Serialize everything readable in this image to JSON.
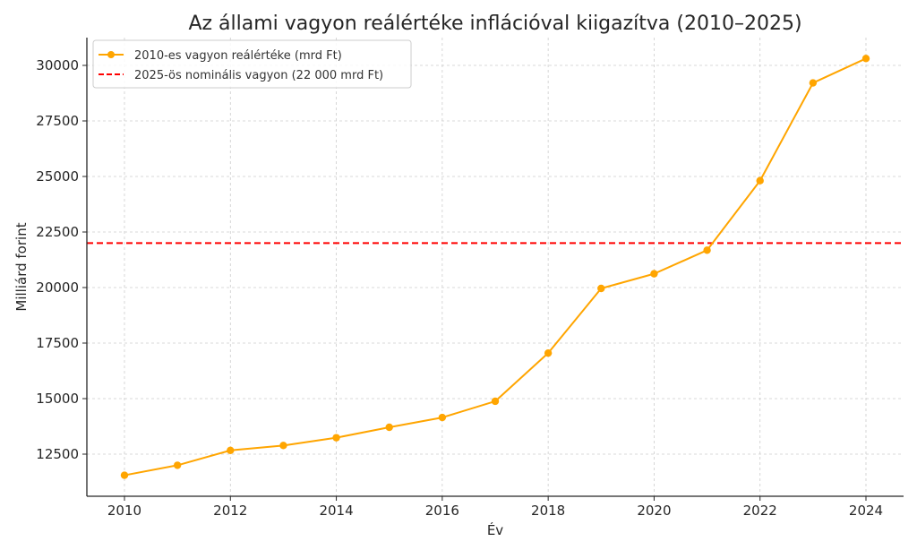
{
  "chart_data": {
    "type": "line",
    "title": "Az állami vagyon reálértéke inflációval kiigazítva (2010–2025)",
    "xlabel": "Év",
    "ylabel": "Milliárd forint",
    "x": [
      2010,
      2011,
      2012,
      2013,
      2014,
      2015,
      2016,
      2017,
      2018,
      2019,
      2020,
      2021,
      2022,
      2023,
      2024
    ],
    "series": [
      {
        "name": "2010-es vagyon reálértéke (mrd Ft)",
        "color": "#FFA500",
        "style": "solid",
        "marker": "circle",
        "values": [
          11550,
          12000,
          12670,
          12890,
          13240,
          13710,
          14150,
          14880,
          17050,
          19960,
          20620,
          21680,
          24810,
          29210,
          30310
        ]
      }
    ],
    "reference_lines": [
      {
        "name": "2025-ös nominális vagyon (22 000 mrd Ft)",
        "color": "#FF0000",
        "style": "dashed",
        "orientation": "horizontal",
        "value": 22000
      }
    ],
    "xticks": [
      2010,
      2012,
      2014,
      2016,
      2018,
      2020,
      2022,
      2024
    ],
    "yticks": [
      12500,
      15000,
      17500,
      20000,
      22500,
      25000,
      27500,
      30000
    ],
    "xlim": [
      2009.29,
      2024.71
    ],
    "ylim": [
      10605,
      31250
    ],
    "grid": true,
    "legend_position": "upper left"
  }
}
